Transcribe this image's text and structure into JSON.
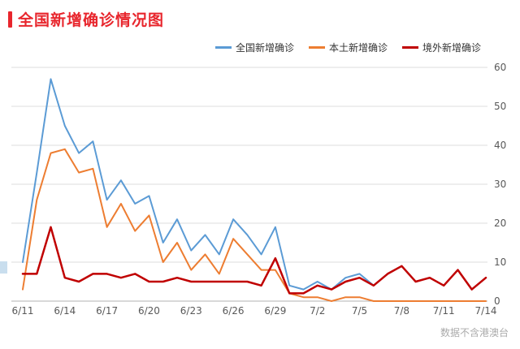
{
  "title": "全国新增确诊情况图",
  "footnote": "数据不含港澳台",
  "colors": {
    "title": "#e8262d",
    "grid": "#dcdcdc",
    "axis": "#b3b3b3",
    "tick_text": "#595959"
  },
  "chart_data": {
    "type": "line",
    "title": "全国新增确诊情况图",
    "xlabel": "",
    "ylabel": "",
    "grid": true,
    "legend_position": "top-right",
    "ylim": [
      0,
      60
    ],
    "yticks": [
      0,
      10,
      20,
      30,
      40,
      50,
      60
    ],
    "yaxis_side": "right",
    "xtick_step": 3,
    "xticklabels": [
      "6/11",
      "6/14",
      "6/17",
      "6/20",
      "6/23",
      "6/26",
      "6/29",
      "7/2",
      "7/5",
      "7/8",
      "7/11",
      "7/14"
    ],
    "dates": [
      "6/11",
      "6/12",
      "6/13",
      "6/14",
      "6/15",
      "6/16",
      "6/17",
      "6/18",
      "6/19",
      "6/20",
      "6/21",
      "6/22",
      "6/23",
      "6/24",
      "6/25",
      "6/26",
      "6/27",
      "6/28",
      "6/29",
      "6/30",
      "7/1",
      "7/2",
      "7/3",
      "7/4",
      "7/5",
      "7/6",
      "7/7",
      "7/8",
      "7/9",
      "7/10",
      "7/11",
      "7/12",
      "7/13",
      "7/14"
    ],
    "series": [
      {
        "name": "全国新增确诊",
        "color": "#5b9bd5",
        "width": 2,
        "values": [
          10,
          33,
          57,
          45,
          38,
          41,
          26,
          31,
          25,
          27,
          15,
          21,
          13,
          17,
          12,
          21,
          17,
          12,
          19,
          4,
          3,
          5,
          3,
          6,
          7,
          4,
          7,
          9,
          5,
          6,
          4,
          8,
          3,
          6
        ]
      },
      {
        "name": "本土新增确诊",
        "color": "#ed7d31",
        "width": 2,
        "values": [
          3,
          26,
          38,
          39,
          33,
          34,
          19,
          25,
          18,
          22,
          10,
          15,
          8,
          12,
          7,
          16,
          12,
          8,
          8,
          2,
          1,
          1,
          0,
          1,
          1,
          0,
          0,
          0,
          0,
          0,
          0,
          0,
          0,
          0
        ]
      },
      {
        "name": "境外新增确诊",
        "color": "#c00000",
        "width": 2.5,
        "values": [
          7,
          7,
          19,
          6,
          5,
          7,
          7,
          6,
          7,
          5,
          5,
          6,
          5,
          5,
          5,
          5,
          5,
          4,
          11,
          2,
          2,
          4,
          3,
          5,
          6,
          4,
          7,
          9,
          5,
          6,
          4,
          8,
          3,
          6
        ]
      }
    ]
  }
}
